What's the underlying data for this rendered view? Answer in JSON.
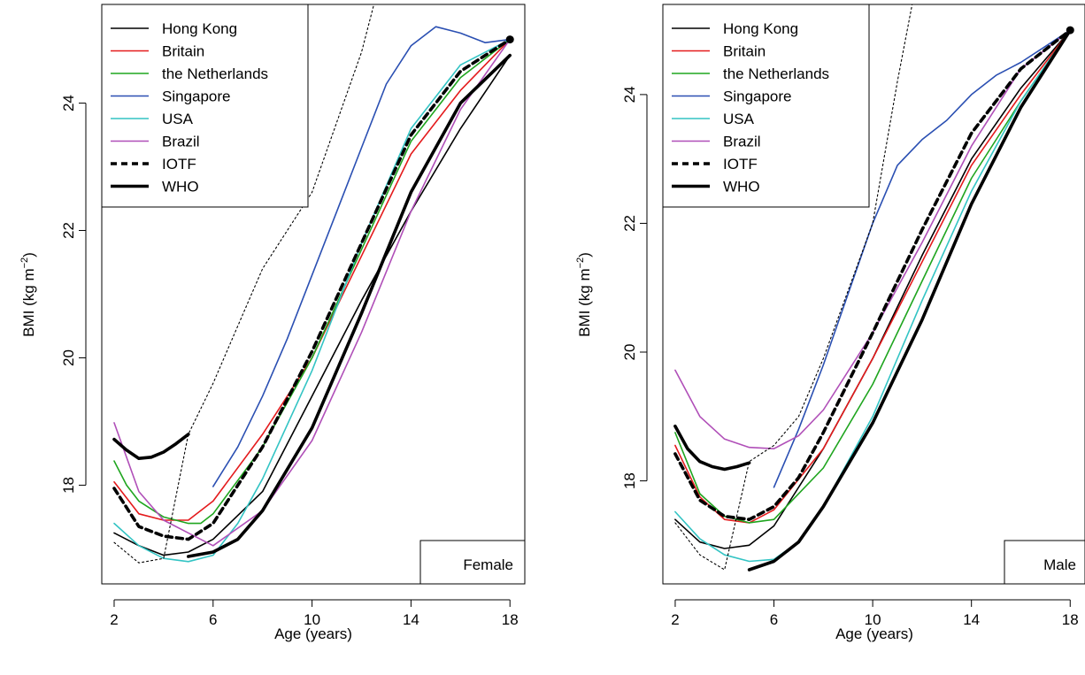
{
  "chart_data": [
    {
      "type": "line",
      "panel_label": "Female",
      "xlabel": "Age (years)",
      "ylabel": "BMI (kg m",
      "ylabel_exponent": "−2",
      "ylabel_close": ")",
      "xlim": [
        1.5,
        18.6
      ],
      "ylim": [
        16.45,
        25.55
      ],
      "xticks": [
        2,
        6,
        10,
        14,
        18
      ],
      "yticks": [
        18,
        20,
        22,
        24
      ],
      "legend_position": "top-left",
      "series": [
        {
          "name": "Hong Kong",
          "color": "#000000",
          "style": "thin",
          "x": [
            2,
            3,
            4,
            5,
            6,
            8,
            10,
            12,
            14,
            16,
            18
          ],
          "y": [
            17.25,
            17.05,
            16.9,
            16.95,
            17.15,
            17.9,
            19.4,
            20.9,
            22.3,
            23.6,
            24.75
          ]
        },
        {
          "name": "Britain",
          "color": "#e41a1c",
          "style": "thin",
          "x": [
            2,
            3,
            4,
            5,
            6,
            8,
            10,
            12,
            14,
            16,
            18
          ],
          "y": [
            18.05,
            17.55,
            17.45,
            17.45,
            17.75,
            18.8,
            20.0,
            21.6,
            23.2,
            24.2,
            25.0
          ]
        },
        {
          "name": "the Netherlands",
          "color": "#1fa51f",
          "style": "thin",
          "x": [
            2,
            2.5,
            3,
            4,
            5,
            5.5,
            6,
            8,
            10,
            12,
            14,
            16,
            18
          ],
          "y": [
            18.38,
            18.0,
            17.75,
            17.5,
            17.4,
            17.4,
            17.55,
            18.6,
            20.0,
            21.7,
            23.4,
            24.4,
            25.0
          ]
        },
        {
          "name": "Singapore",
          "color": "#2a4fb2",
          "style": "thin",
          "x": [
            6,
            7,
            8,
            9,
            10,
            11,
            12,
            13,
            14,
            15,
            16,
            17,
            18
          ],
          "y": [
            17.98,
            18.6,
            19.4,
            20.3,
            21.3,
            22.3,
            23.3,
            24.3,
            24.9,
            25.2,
            25.1,
            24.95,
            25.0
          ]
        },
        {
          "name": "USA",
          "color": "#33c4c4",
          "style": "thin",
          "x": [
            2,
            3,
            4,
            5,
            6,
            7,
            8,
            10,
            12,
            14,
            16,
            18
          ],
          "y": [
            17.4,
            17.05,
            16.85,
            16.8,
            16.9,
            17.4,
            18.1,
            19.8,
            21.8,
            23.6,
            24.6,
            25.0
          ]
        },
        {
          "name": "Brazil",
          "color": "#b04fb8",
          "style": "thin",
          "x": [
            2,
            3,
            4,
            5,
            6,
            8,
            10,
            12,
            14,
            16,
            18
          ],
          "y": [
            18.98,
            17.9,
            17.45,
            17.25,
            17.05,
            17.6,
            18.7,
            20.4,
            22.3,
            23.9,
            25.0
          ]
        },
        {
          "name": "IOTF",
          "color": "#000000",
          "style": "dashed",
          "x": [
            2,
            3,
            4,
            5,
            6,
            8,
            10,
            12,
            14,
            16,
            18
          ],
          "y": [
            17.95,
            17.35,
            17.2,
            17.15,
            17.4,
            18.6,
            20.1,
            21.8,
            23.5,
            24.5,
            25.0
          ]
        },
        {
          "name": "WHO",
          "color": "#000000",
          "style": "thick",
          "x": [
            2,
            2.5,
            3,
            3.5,
            4,
            4.5,
            5
          ],
          "y": [
            18.72,
            18.55,
            18.42,
            18.44,
            18.52,
            18.65,
            18.8
          ]
        },
        {
          "name": "WHO",
          "color": "#000000",
          "style": "thick",
          "x": [
            5,
            6,
            7,
            8,
            10,
            12,
            14,
            16,
            18
          ],
          "y": [
            16.88,
            16.95,
            17.15,
            17.6,
            18.9,
            20.7,
            22.6,
            24.0,
            24.75
          ]
        },
        {
          "name": "",
          "color": "#000000",
          "style": "dotted",
          "x": [
            2,
            3,
            4,
            5,
            6,
            7,
            8,
            10,
            12,
            12.5
          ],
          "y": [
            17.1,
            16.78,
            16.85,
            18.8,
            19.6,
            20.5,
            21.4,
            22.6,
            24.8,
            25.55
          ]
        }
      ],
      "endpoint": {
        "x": 18,
        "y": 25.0
      }
    },
    {
      "type": "line",
      "panel_label": "Male",
      "xlabel": "Age (years)",
      "ylabel": "BMI (kg m",
      "ylabel_exponent": "−2",
      "ylabel_close": ")",
      "xlim": [
        1.5,
        18.6
      ],
      "ylim": [
        16.4,
        25.4
      ],
      "xticks": [
        2,
        6,
        10,
        14,
        18
      ],
      "yticks": [
        18,
        20,
        22,
        24
      ],
      "legend_position": "top-left",
      "series": [
        {
          "name": "Hong Kong",
          "color": "#000000",
          "style": "thin",
          "x": [
            2,
            3,
            4,
            5,
            6,
            8,
            10,
            12,
            14,
            16,
            18
          ],
          "y": [
            17.4,
            17.05,
            16.95,
            17.0,
            17.3,
            18.5,
            19.9,
            21.5,
            23.0,
            24.1,
            25.0
          ]
        },
        {
          "name": "Britain",
          "color": "#e41a1c",
          "style": "thin",
          "x": [
            2,
            3,
            4,
            5,
            6,
            8,
            10,
            12,
            14,
            16,
            18
          ],
          "y": [
            18.55,
            17.75,
            17.4,
            17.35,
            17.55,
            18.5,
            19.9,
            21.4,
            22.9,
            24.0,
            25.0
          ]
        },
        {
          "name": "the Netherlands",
          "color": "#1fa51f",
          "style": "thin",
          "x": [
            2,
            3,
            4,
            5,
            6,
            8,
            10,
            12,
            14,
            16,
            18
          ],
          "y": [
            18.75,
            17.8,
            17.45,
            17.35,
            17.4,
            18.2,
            19.5,
            21.1,
            22.7,
            23.9,
            25.0
          ]
        },
        {
          "name": "Singapore",
          "color": "#2a4fb2",
          "style": "thin",
          "x": [
            6,
            7,
            8,
            9,
            10,
            11,
            12,
            13,
            14,
            15,
            16,
            17,
            18
          ],
          "y": [
            17.9,
            18.8,
            19.8,
            20.9,
            22.0,
            22.9,
            23.3,
            23.6,
            24.0,
            24.3,
            24.5,
            24.75,
            25.0
          ]
        },
        {
          "name": "USA",
          "color": "#33c4c4",
          "style": "thin",
          "x": [
            2,
            3,
            4,
            5,
            6,
            7,
            8,
            10,
            12,
            14,
            16,
            18
          ],
          "y": [
            17.52,
            17.1,
            16.85,
            16.75,
            16.78,
            17.05,
            17.6,
            19.0,
            20.8,
            22.5,
            23.9,
            25.0
          ]
        },
        {
          "name": "Brazil",
          "color": "#b04fb8",
          "style": "thin",
          "x": [
            2,
            3,
            4,
            5,
            6,
            7,
            8,
            10,
            12,
            14,
            16,
            18
          ],
          "y": [
            19.72,
            19.0,
            18.65,
            18.52,
            18.5,
            18.7,
            19.1,
            20.3,
            21.7,
            23.2,
            24.4,
            25.0
          ]
        },
        {
          "name": "IOTF",
          "color": "#000000",
          "style": "dashed",
          "x": [
            2,
            3,
            4,
            5,
            6,
            7,
            8,
            10,
            12,
            14,
            16,
            18
          ],
          "y": [
            18.42,
            17.7,
            17.45,
            17.4,
            17.6,
            18.05,
            18.75,
            20.3,
            21.9,
            23.4,
            24.4,
            25.0
          ]
        },
        {
          "name": "WHO",
          "color": "#000000",
          "style": "thick",
          "x": [
            2,
            2.5,
            3,
            3.5,
            4,
            4.5,
            5
          ],
          "y": [
            18.85,
            18.5,
            18.3,
            18.22,
            18.18,
            18.22,
            18.28
          ]
        },
        {
          "name": "WHO",
          "color": "#000000",
          "style": "thick",
          "x": [
            5,
            6,
            7,
            8,
            10,
            12,
            14,
            16,
            18
          ],
          "y": [
            16.62,
            16.75,
            17.05,
            17.6,
            18.9,
            20.5,
            22.3,
            23.8,
            25.0
          ]
        },
        {
          "name": "",
          "color": "#000000",
          "style": "dotted",
          "x": [
            2,
            3,
            4,
            5,
            6,
            7,
            8,
            10,
            11,
            11.6
          ],
          "y": [
            17.35,
            16.85,
            16.62,
            18.3,
            18.55,
            19.0,
            19.9,
            22.0,
            24.2,
            25.4
          ]
        }
      ],
      "endpoint": {
        "x": 18,
        "y": 25.0
      }
    }
  ]
}
